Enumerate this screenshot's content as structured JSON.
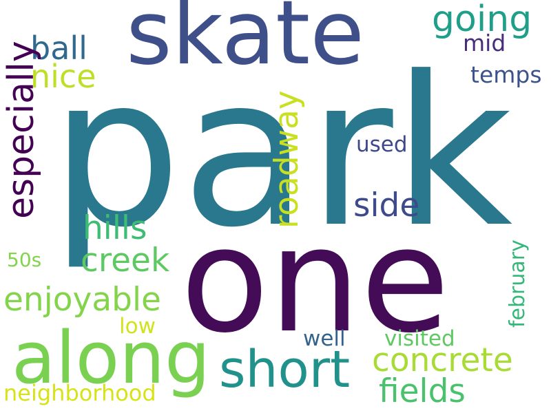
{
  "words": {
    "park": {
      "text": "park",
      "color": "#2a788e"
    },
    "one": {
      "text": "one",
      "color": "#440b57"
    },
    "skate": {
      "text": "skate",
      "color": "#3f4f8a"
    },
    "along": {
      "text": "along",
      "color": "#7ad151"
    },
    "short": {
      "text": "short",
      "color": "#21918c"
    },
    "going": {
      "text": "going",
      "color": "#1f9e89"
    },
    "ball": {
      "text": "ball",
      "color": "#31688e"
    },
    "nice": {
      "text": "nice",
      "color": "#bddf26"
    },
    "especially": {
      "text": "especially",
      "color": "#440154"
    },
    "mid": {
      "text": "mid",
      "color": "#472d7b"
    },
    "temps": {
      "text": "temps",
      "color": "#3b528b"
    },
    "roadway": {
      "text": "roadway",
      "color": "#c8e020"
    },
    "used": {
      "text": "used",
      "color": "#3e4989"
    },
    "side": {
      "text": "side",
      "color": "#3e4a89"
    },
    "hills": {
      "text": "hills",
      "color": "#3dbc74"
    },
    "creek": {
      "text": "creek",
      "color": "#5ec962"
    },
    "50s": {
      "text": "50s",
      "color": "#84d44b"
    },
    "enjoyable": {
      "text": "enjoyable",
      "color": "#84d44b"
    },
    "low": {
      "text": "low",
      "color": "#d2e21b"
    },
    "february": {
      "text": "february",
      "color": "#35b779"
    },
    "well": {
      "text": "well",
      "color": "#33638d"
    },
    "visited": {
      "text": "visited",
      "color": "#5ec962"
    },
    "concrete": {
      "text": "concrete",
      "color": "#a8db34"
    },
    "fields": {
      "text": "fields",
      "color": "#4ac16d"
    },
    "neighborhood": {
      "text": "neighborhood",
      "color": "#d8e219"
    }
  }
}
